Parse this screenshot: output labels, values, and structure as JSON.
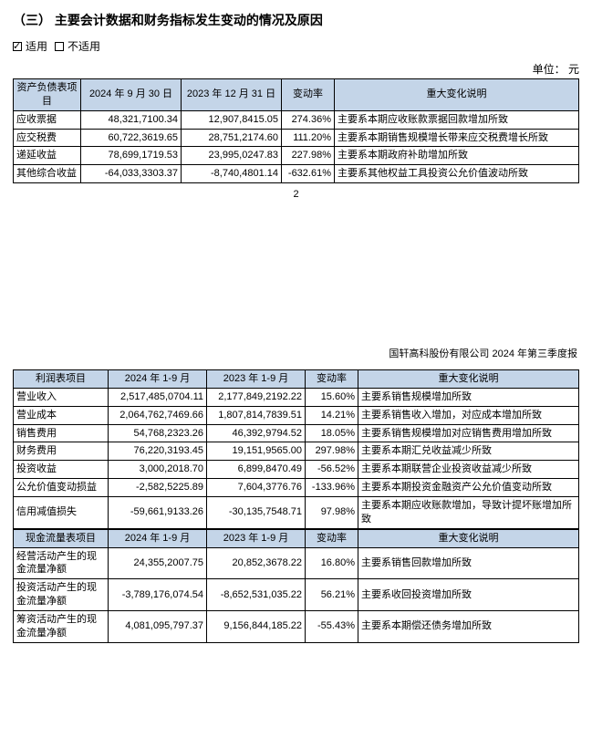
{
  "section_heading": "（三） 主要会计数据和财务指标发生变动的情况及原因",
  "checkbox_applicable": "适用",
  "checkbox_not_applicable": "不适用",
  "unit_label": "单位： 元",
  "page_number": "2",
  "report_header": "国轩高科股份有限公司 2024 年第三季度报",
  "balance_table": {
    "columns": [
      "资产负债表项目",
      "2024 年 9 月 30 日",
      "2023 年 12 月 31 日",
      "变动率",
      "重大变化说明"
    ],
    "rows": [
      {
        "item": "应收票据",
        "v1": "48,321,7100.34",
        "v2": "12,907,8415.05",
        "rate": "274.36%",
        "desc": "主要系本期应收账款票据回款增加所致"
      },
      {
        "item": "应交税费",
        "v1": "60,722,3619.65",
        "v2": "28,751,2174.60",
        "rate": "111.20%",
        "desc": "主要系本期销售规模增长带来应交税费增长所致"
      },
      {
        "item": "递延收益",
        "v1": "78,699,1719.53",
        "v2": "23,995,0247.83",
        "rate": "227.98%",
        "desc": "主要系本期政府补助增加所致"
      },
      {
        "item": "其他综合收益",
        "v1": "-64,033,3303.37",
        "v2": "-8,740,4801.14",
        "rate": "-632.61%",
        "desc": "主要系其他权益工具投资公允价值波动所致"
      }
    ]
  },
  "income_table": {
    "columns": [
      "利润表项目",
      "2024 年 1-9 月",
      "2023 年 1-9 月",
      "变动率",
      "重大变化说明"
    ],
    "rows": [
      {
        "item": "营业收入",
        "v1": "2,517,485,0704.11",
        "v2": "2,177,849,2192.22",
        "rate": "15.60%",
        "desc": "主要系销售规模增加所致"
      },
      {
        "item": "营业成本",
        "v1": "2,064,762,7469.66",
        "v2": "1,807,814,7839.51",
        "rate": "14.21%",
        "desc": "主要系销售收入增加，对应成本增加所致"
      },
      {
        "item": "销售费用",
        "v1": "54,768,2323.26",
        "v2": "46,392,9794.52",
        "rate": "18.05%",
        "desc": "主要系销售规模增加对应销售费用增加所致"
      },
      {
        "item": "财务费用",
        "v1": "76,220,3193.45",
        "v2": "19,151,9565.00",
        "rate": "297.98%",
        "desc": "主要系本期汇兑收益减少所致"
      },
      {
        "item": "投资收益",
        "v1": "3,000,2018.70",
        "v2": "6,899,8470.49",
        "rate": "-56.52%",
        "desc": "主要系本期联营企业投资收益减少所致"
      },
      {
        "item": "公允价值变动损益",
        "v1": "-2,582,5225.89",
        "v2": "7,604,3776.76",
        "rate": "-133.96%",
        "desc": "主要系本期投资金融资产公允价值变动所致"
      },
      {
        "item": "信用减值损失",
        "v1": "-59,661,9133.26",
        "v2": "-30,135,7548.71",
        "rate": "97.98%",
        "desc": "主要系本期应收账款增加，导致计提坏账增加所致"
      }
    ]
  },
  "cashflow_table": {
    "columns": [
      "现金流量表项目",
      "2024 年 1-9 月",
      "2023 年 1-9 月",
      "变动率",
      "重大变化说明"
    ],
    "rows": [
      {
        "item": "经营活动产生的现金流量净额",
        "v1": "24,355,2007.75",
        "v2": "20,852,3678.22",
        "rate": "16.80%",
        "desc": "主要系销售回款增加所致"
      },
      {
        "item": "投资活动产生的现金流量净额",
        "v1": "-3,789,176,074.54",
        "v2": "-8,652,531,035.22",
        "rate": "56.21%",
        "desc": "主要系收回投资增加所致"
      },
      {
        "item": "筹资活动产生的现金流量净额",
        "v1": "4,081,095,797.37",
        "v2": "9,156,844,185.22",
        "rate": "-55.43%",
        "desc": "主要系本期偿还债务增加所致"
      }
    ]
  },
  "colors": {
    "header_bg": "#c4d5e8",
    "border": "#000000",
    "text": "#000000",
    "bg": "#ffffff"
  }
}
